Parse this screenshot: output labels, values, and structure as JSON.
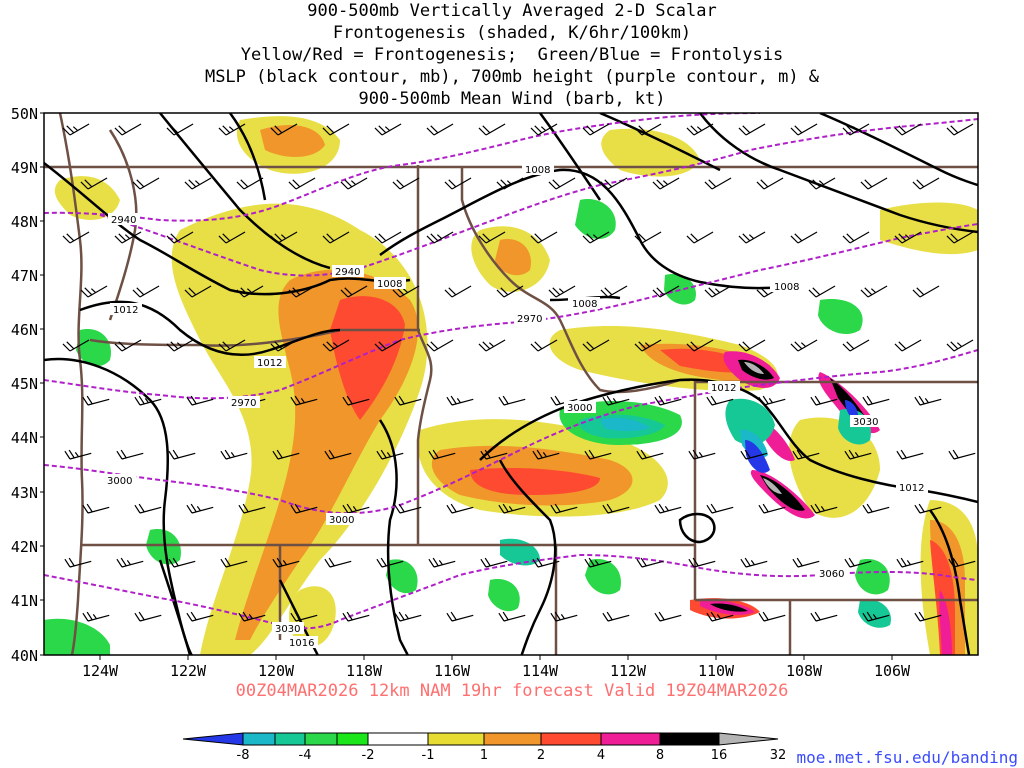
{
  "title_lines": [
    "900-500mb Vertically Averaged 2-D Scalar",
    "Frontogenesis (shaded, K/6hr/100km)",
    "Yellow/Red = Frontogenesis;  Green/Blue = Frontolysis",
    "MSLP (black contour, mb), 700mb height (purple contour, m) &",
    "900-500mb Mean Wind (barb, kt)"
  ],
  "lat_labels": [
    "50N",
    "49N",
    "48N",
    "47N",
    "46N",
    "45N",
    "44N",
    "43N",
    "42N",
    "41N",
    "40N"
  ],
  "lon_labels": [
    "124W",
    "122W",
    "120W",
    "118W",
    "116W",
    "114W",
    "112W",
    "110W",
    "108W",
    "106W"
  ],
  "valid_text": "00Z04MAR2026 12km NAM 19hr forecast Valid 19Z04MAR2026",
  "credit": "moe.met.fsu.edu/banding",
  "colorbar": {
    "labels": [
      "-8",
      "-4",
      "-2",
      "-1",
      "1",
      "2",
      "4",
      "8",
      "16",
      "32"
    ],
    "colors": [
      "#2438e8",
      "#1ab8c8",
      "#16c896",
      "#2ad84a",
      "#1ae61a",
      "#ffffff",
      "#e6dc32",
      "#f0962a",
      "#ff4a32",
      "#f01e96",
      "#000000",
      "#b4b4b4"
    ]
  },
  "contour_labels": {
    "mslp": [
      "1008",
      "1008",
      "1008",
      "1008",
      "1012",
      "1012",
      "1012",
      "1012",
      "1016"
    ],
    "height": [
      "2940",
      "2940",
      "2970",
      "2970",
      "3000",
      "3000",
      "3000",
      "3030",
      "3060",
      "3030"
    ]
  },
  "colors": {
    "mslp": "#000000",
    "height": "#b020c8",
    "border": "#6e5044",
    "barb": "#000000"
  }
}
